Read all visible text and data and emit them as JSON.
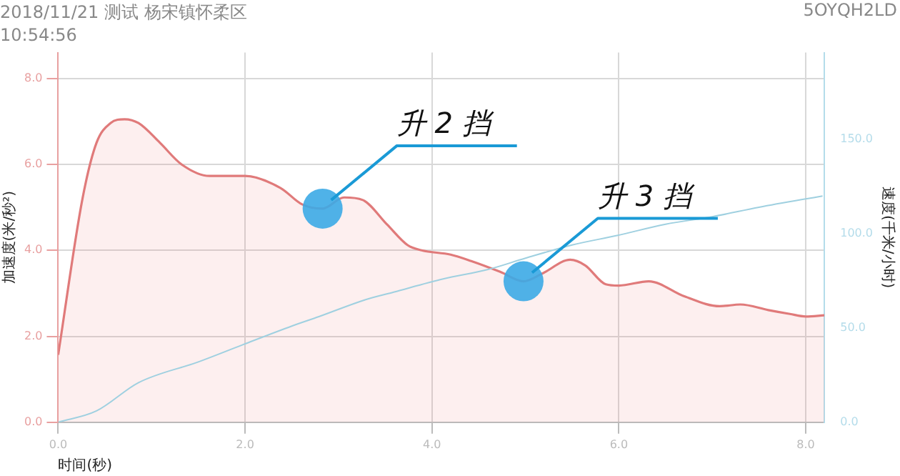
{
  "chart_data": {
    "type": "area",
    "title": "2018/11/21 测试 杨宋镇怀柔区",
    "subtitle": "10:54:56",
    "xlabel": "时间(秒)",
    "ylabel": "加速度(米/秒²)",
    "y2label": "速度(千米/小时)",
    "xlim": [
      0,
      8.2
    ],
    "xticks": [
      {
        "value": 0,
        "label": "0.0"
      },
      {
        "value": 2,
        "label": "2.0"
      },
      {
        "value": 4,
        "label": "4.0"
      },
      {
        "value": 6,
        "label": "6.0"
      },
      {
        "value": 8,
        "label": "8.0"
      }
    ],
    "ylim": [
      0,
      8.6
    ],
    "yticks": [
      {
        "value": 0,
        "label": "0.0"
      },
      {
        "value": 2,
        "label": "2.0"
      },
      {
        "value": 4,
        "label": "4.0"
      },
      {
        "value": 6,
        "label": "6.0"
      },
      {
        "value": 8,
        "label": "8.0"
      }
    ],
    "y2lim": [
      0,
      196
    ],
    "y2ticks": [
      {
        "value": 0,
        "label": "0.0"
      },
      {
        "value": 50,
        "label": "50.0"
      },
      {
        "value": 100,
        "label": "100.0"
      },
      {
        "value": 150,
        "label": "150.0"
      }
    ],
    "grid": true,
    "marker": "none",
    "series": [
      {
        "color": "#e07a7a",
        "x": [
          0,
          0.26,
          0.41,
          0.56,
          0.71,
          0.86,
          1.09,
          1.32,
          1.62,
          2.0,
          2.38,
          2.61,
          2.83,
          3.06,
          3.26,
          3.52,
          3.74,
          3.89,
          4.2,
          4.42,
          4.73,
          4.98,
          5.18,
          5.48,
          5.64,
          5.86,
          6.0,
          6.32,
          6.7,
          7.08,
          7.3,
          7.6,
          7.83,
          8.0,
          8.2
        ],
        "values": [
          1.57,
          5.2,
          6.5,
          6.96,
          7.05,
          6.96,
          6.5,
          6.0,
          5.73,
          5.73,
          5.45,
          5.07,
          4.97,
          5.23,
          5.17,
          4.6,
          4.12,
          4.0,
          3.9,
          3.75,
          3.5,
          3.28,
          3.46,
          3.78,
          3.65,
          3.21,
          3.18,
          3.28,
          2.93,
          2.7,
          2.74,
          2.61,
          2.52,
          2.46,
          2.49
        ]
      },
      {
        "type": "line",
        "axis": "y2",
        "color": "#9fd0e0",
        "x": [
          0,
          0.41,
          0.86,
          1.5,
          1.97,
          2.5,
          2.79,
          3.29,
          3.59,
          4.12,
          4.6,
          5.0,
          5.5,
          5.98,
          6.5,
          7.0,
          7.5,
          8.18
        ],
        "values": [
          0,
          6,
          21,
          32,
          41,
          51,
          56,
          65,
          69,
          76,
          81,
          87,
          94,
          99,
          105,
          109,
          114,
          120
        ]
      }
    ],
    "annotations": [
      "5OYQH2LD",
      {
        "text": "升 2 挡",
        "x": 2.83,
        "y": 4.97
      },
      {
        "text": "升 3 挡",
        "x": 4.98,
        "y": 3.28
      }
    ]
  }
}
